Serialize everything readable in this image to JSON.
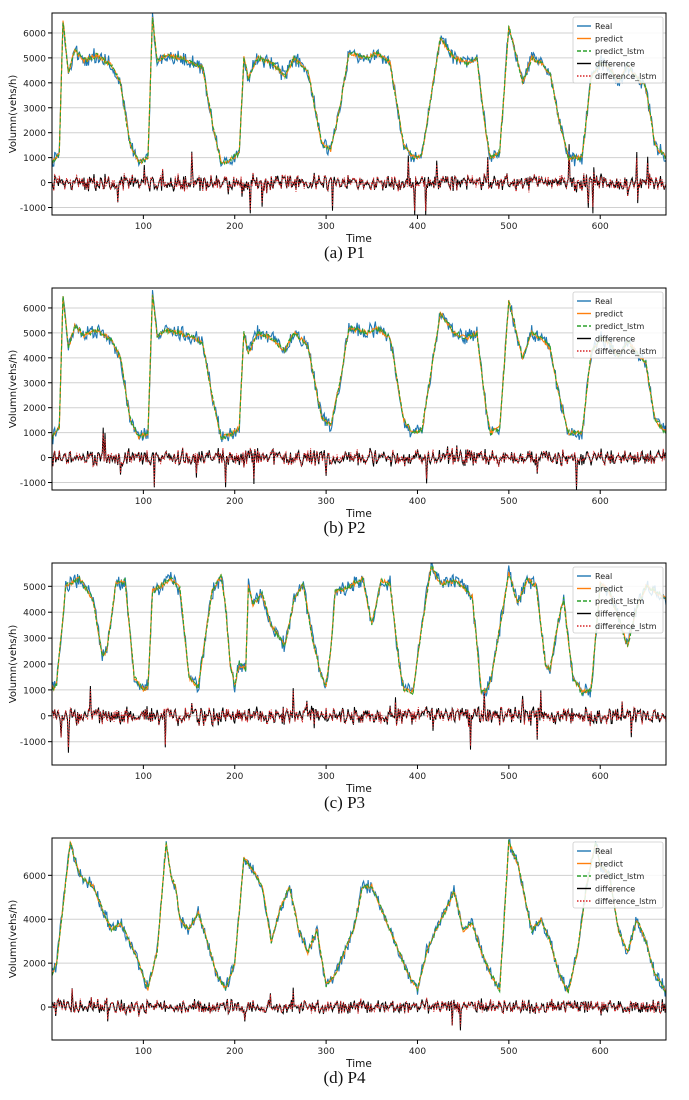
{
  "chart_data": [
    {
      "type": "line",
      "caption": "(a)   P1",
      "xlabel": "Time",
      "ylabel": "Volumn(vehs/h)",
      "xlim": [
        0,
        672
      ],
      "ylim": [
        -1300,
        6800
      ],
      "xticks": [
        100,
        200,
        300,
        400,
        500,
        600
      ],
      "yticks": [
        -1000,
        0,
        1000,
        2000,
        3000,
        4000,
        5000,
        6000
      ],
      "grid": "horizontal",
      "legend_position": "top-right",
      "series": [
        {
          "name": "Real",
          "color": "#1f77b4",
          "style": "solid"
        },
        {
          "name": "predict",
          "color": "#ff7f0e",
          "style": "solid"
        },
        {
          "name": "predict_lstm",
          "color": "#2ca02c",
          "style": "dashed"
        },
        {
          "name": "difference",
          "color": "#000000",
          "style": "solid"
        },
        {
          "name": "difference_lstm",
          "color": "#d62728",
          "style": "dotted"
        }
      ],
      "real_keypoints": {
        "x": [
          0,
          8,
          12,
          18,
          25,
          35,
          50,
          65,
          75,
          85,
          95,
          105,
          110,
          115,
          125,
          140,
          155,
          165,
          175,
          185,
          195,
          205,
          210,
          215,
          225,
          240,
          255,
          265,
          280,
          295,
          305,
          315,
          325,
          335,
          345,
          355,
          370,
          385,
          395,
          405,
          415,
          425,
          440,
          455,
          465,
          475,
          480,
          485,
          490,
          500,
          515,
          525,
          535,
          545,
          555,
          565,
          580,
          590,
          600,
          610,
          620,
          630,
          640,
          650,
          660,
          672
        ],
        "y": [
          800,
          1200,
          6500,
          4400,
          5300,
          4900,
          5100,
          4700,
          4000,
          1600,
          800,
          1000,
          6600,
          4900,
          5100,
          5000,
          4800,
          4600,
          2500,
          800,
          900,
          1200,
          5000,
          4200,
          5000,
          4800,
          4300,
          5000,
          4500,
          1600,
          1300,
          3000,
          5200,
          5100,
          5000,
          5200,
          4800,
          1500,
          1000,
          1100,
          3500,
          5800,
          5000,
          4800,
          5000,
          2000,
          1000,
          1100,
          1200,
          6300,
          4000,
          5000,
          4800,
          4400,
          2500,
          1000,
          1000,
          4200,
          4800,
          4600,
          4000,
          4700,
          4200,
          3800,
          1500,
          1000
        ]
      },
      "diff_range": [
        -1300,
        1900
      ]
    },
    {
      "type": "line",
      "caption": "(b) P2",
      "xlabel": "Time",
      "ylabel": "Volumn(vehs/h)",
      "xlim": [
        0,
        672
      ],
      "ylim": [
        -1300,
        6800
      ],
      "xticks": [
        100,
        200,
        300,
        400,
        500,
        600
      ],
      "yticks": [
        -1000,
        0,
        1000,
        2000,
        3000,
        4000,
        5000,
        6000
      ],
      "grid": "horizontal",
      "legend_position": "top-right",
      "series": [
        {
          "name": "Real",
          "color": "#1f77b4",
          "style": "solid"
        },
        {
          "name": "predict",
          "color": "#ff7f0e",
          "style": "solid"
        },
        {
          "name": "predict_lstm",
          "color": "#2ca02c",
          "style": "dashed"
        },
        {
          "name": "difference",
          "color": "#000000",
          "style": "solid"
        },
        {
          "name": "difference_lstm",
          "color": "#d62728",
          "style": "dotted"
        }
      ],
      "real_keypoints": {
        "x": [
          0,
          8,
          12,
          18,
          25,
          35,
          50,
          65,
          75,
          85,
          95,
          105,
          110,
          115,
          125,
          140,
          155,
          165,
          175,
          185,
          195,
          205,
          210,
          215,
          225,
          240,
          255,
          265,
          280,
          295,
          305,
          315,
          325,
          335,
          345,
          355,
          370,
          385,
          395,
          405,
          415,
          425,
          440,
          455,
          465,
          475,
          480,
          485,
          490,
          500,
          515,
          525,
          535,
          545,
          555,
          565,
          580,
          590,
          600,
          610,
          620,
          630,
          640,
          650,
          660,
          672
        ],
        "y": [
          800,
          1200,
          6500,
          4400,
          5300,
          4900,
          5100,
          4700,
          4000,
          1600,
          800,
          1000,
          6600,
          4900,
          5100,
          5000,
          4800,
          4600,
          2500,
          800,
          900,
          1200,
          5000,
          4200,
          5000,
          4800,
          4300,
          5000,
          4500,
          1600,
          1300,
          3000,
          5200,
          5100,
          5000,
          5200,
          4800,
          1500,
          1000,
          1100,
          3500,
          5800,
          5000,
          4800,
          5000,
          2000,
          1000,
          1100,
          1200,
          6300,
          4000,
          5000,
          4800,
          4400,
          2500,
          1000,
          1000,
          4200,
          4800,
          4600,
          4000,
          4700,
          4200,
          3800,
          1500,
          1000
        ]
      },
      "diff_range": [
        -1300,
        1900
      ]
    },
    {
      "type": "line",
      "caption": "(c) P3",
      "xlabel": "Time",
      "ylabel": "Volumn(vehs/h)",
      "xlim": [
        0,
        672
      ],
      "ylim": [
        -1900,
        5900
      ],
      "xticks": [
        100,
        200,
        300,
        400,
        500,
        600
      ],
      "yticks": [
        -1000,
        0,
        1000,
        2000,
        3000,
        4000,
        5000
      ],
      "grid": "horizontal",
      "legend_position": "top-right",
      "series": [
        {
          "name": "Real",
          "color": "#1f77b4",
          "style": "solid"
        },
        {
          "name": "predict",
          "color": "#ff7f0e",
          "style": "solid"
        },
        {
          "name": "predict_lstm",
          "color": "#2ca02c",
          "style": "dashed"
        },
        {
          "name": "difference",
          "color": "#000000",
          "style": "solid"
        },
        {
          "name": "difference_lstm",
          "color": "#d62728",
          "style": "dotted"
        }
      ],
      "real_keypoints": {
        "x": [
          0,
          5,
          15,
          30,
          45,
          55,
          60,
          70,
          80,
          90,
          100,
          105,
          110,
          115,
          130,
          140,
          150,
          160,
          175,
          185,
          190,
          195,
          200,
          205,
          212,
          215,
          220,
          230,
          240,
          255,
          265,
          275,
          285,
          295,
          300,
          305,
          310,
          320,
          340,
          350,
          360,
          370,
          380,
          385,
          395,
          405,
          415,
          425,
          440,
          450,
          460,
          465,
          470,
          475,
          480,
          500,
          510,
          520,
          530,
          540,
          545,
          555,
          560,
          570,
          580,
          590,
          600,
          610,
          620,
          630,
          640,
          650,
          660,
          672
        ],
        "y": [
          1000,
          1200,
          5000,
          5300,
          4500,
          2300,
          2500,
          5100,
          5200,
          1500,
          1000,
          1100,
          4800,
          4900,
          5300,
          4900,
          1500,
          1100,
          4800,
          5400,
          4200,
          2000,
          1200,
          2000,
          1800,
          5000,
          4300,
          4700,
          3500,
          2700,
          4500,
          5100,
          3000,
          1500,
          1200,
          2500,
          4800,
          4900,
          5300,
          3500,
          5200,
          5100,
          2000,
          1000,
          900,
          3500,
          5800,
          5100,
          5200,
          5000,
          4600,
          2800,
          900,
          1000,
          1300,
          5500,
          4300,
          5300,
          5000,
          2000,
          1800,
          3800,
          4500,
          1500,
          900,
          1000,
          5100,
          4800,
          3800,
          2700,
          4200,
          5000,
          4800,
          4500
        ]
      },
      "diff_range": [
        -1900,
        1900
      ]
    },
    {
      "type": "line",
      "caption": "(d) P4",
      "xlabel": "Time",
      "ylabel": "Volumn(vehs/h)",
      "xlim": [
        0,
        672
      ],
      "ylim": [
        -1500,
        7700
      ],
      "xticks": [
        100,
        200,
        300,
        400,
        500,
        600
      ],
      "yticks": [
        0,
        2000,
        4000,
        6000
      ],
      "grid": "horizontal",
      "legend_position": "top-right",
      "series": [
        {
          "name": "Real",
          "color": "#1f77b4",
          "style": "solid"
        },
        {
          "name": "predict",
          "color": "#ff7f0e",
          "style": "solid"
        },
        {
          "name": "predict_lstm",
          "color": "#2ca02c",
          "style": "dashed"
        },
        {
          "name": "difference",
          "color": "#000000",
          "style": "solid"
        },
        {
          "name": "difference_lstm",
          "color": "#d62728",
          "style": "dotted"
        }
      ],
      "real_keypoints": {
        "x": [
          0,
          5,
          20,
          30,
          45,
          55,
          65,
          75,
          85,
          95,
          105,
          115,
          125,
          130,
          135,
          140,
          150,
          160,
          170,
          180,
          190,
          200,
          210,
          220,
          230,
          240,
          250,
          260,
          270,
          280,
          290,
          300,
          310,
          320,
          330,
          340,
          350,
          360,
          370,
          380,
          390,
          400,
          410,
          420,
          430,
          440,
          450,
          460,
          470,
          480,
          490,
          500,
          510,
          515,
          525,
          535,
          545,
          555,
          565,
          575,
          585,
          595,
          600,
          610,
          620,
          630,
          640,
          650,
          660,
          672
        ],
        "y": [
          1500,
          2000,
          7500,
          6000,
          5500,
          4500,
          3500,
          3800,
          3000,
          2000,
          800,
          2500,
          7500,
          6000,
          5500,
          4000,
          3500,
          4300,
          3000,
          1500,
          800,
          2000,
          6800,
          6200,
          5500,
          3000,
          4500,
          5500,
          3500,
          2500,
          3500,
          1000,
          1500,
          2500,
          3500,
          5500,
          5500,
          4500,
          3500,
          2500,
          1500,
          800,
          2500,
          3500,
          4300,
          5300,
          3500,
          3800,
          2500,
          1500,
          800,
          7500,
          6500,
          5500,
          3500,
          4000,
          3000,
          1500,
          700,
          2500,
          5500,
          7500,
          6500,
          6000,
          3500,
          2500,
          4000,
          3000,
          1500,
          700
        ]
      },
      "diff_range": [
        -1500,
        1800
      ]
    }
  ]
}
